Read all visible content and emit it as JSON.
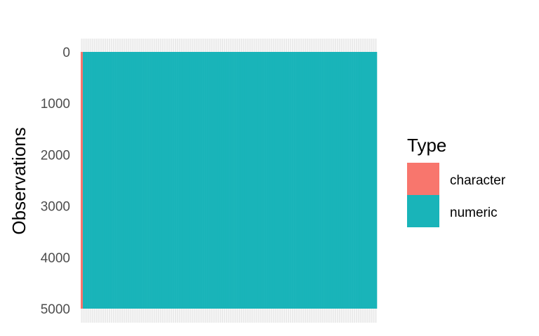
{
  "chart_data": {
    "type": "heatmap",
    "title": "",
    "xlabel": "",
    "ylabel": "Observations",
    "ylim": [
      0,
      5000
    ],
    "y_ticks": [
      0,
      1000,
      2000,
      3000,
      4000,
      5000
    ],
    "y_reversed": true,
    "n_observations": 5000,
    "x_tick_labels_visible": false,
    "columns": [
      {
        "type": "character"
      },
      {
        "type": "numeric",
        "count": 138
      }
    ],
    "legend": {
      "title": "Type",
      "placement": "right",
      "entries": [
        {
          "label": "character",
          "color": "#F8766D"
        },
        {
          "label": "numeric",
          "color": "#19B4B9"
        }
      ]
    }
  }
}
